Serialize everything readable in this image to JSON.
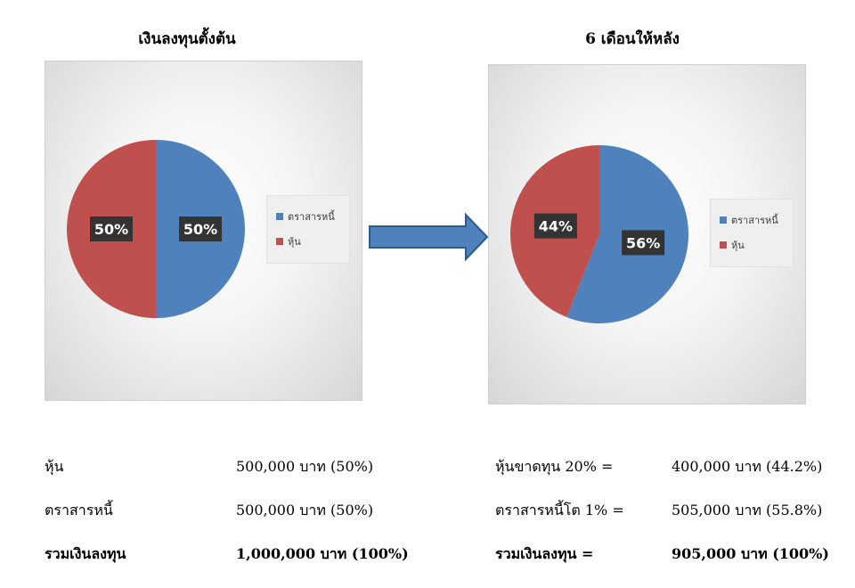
{
  "chart_data": [
    {
      "type": "pie",
      "title": "เงินลงทุนตั้งต้น",
      "categories": [
        "ตราสารหนี้",
        "หุ้น"
      ],
      "values": [
        50,
        50
      ],
      "labels": [
        "50%",
        "50%"
      ],
      "colors": [
        "#4f81bd",
        "#c0504d"
      ],
      "legend_placement": "right"
    },
    {
      "type": "pie",
      "title": "6 เดือนให้หลัง",
      "categories": [
        "ตราสารหนี้",
        "หุ้น"
      ],
      "values": [
        56,
        44
      ],
      "labels": [
        "56%",
        "44%"
      ],
      "colors": [
        "#4f81bd",
        "#c0504d"
      ],
      "legend_placement": "right"
    }
  ],
  "arrow_color": "#4f81bd",
  "left_summary": [
    {
      "label": "หุ้น",
      "value": "500,000 บาท (50%)",
      "bold": false
    },
    {
      "label": "ตราสารหนี้",
      "value": "500,000 บาท (50%)",
      "bold": false
    },
    {
      "label": "รวมเงินลงทุน",
      "value": "1,000,000 บาท (100%)",
      "bold": true
    }
  ],
  "right_summary": [
    {
      "label": "หุ้นขาดทุน 20% =",
      "value": "400,000 บาท (44.2%)",
      "bold": false
    },
    {
      "label": "ตราสารหนี้โต 1% =",
      "value": "505,000 บาท (55.8%)",
      "bold": false
    },
    {
      "label": "รวมเงินลงทุน =",
      "value": "905,000 บาท (100%)",
      "bold": true
    }
  ]
}
